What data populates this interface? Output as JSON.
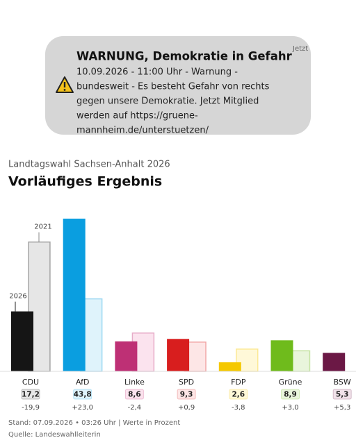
{
  "notification": {
    "title": "WARNUNG, Demokratie in Gefahr",
    "time": "Jetzt",
    "body_lines": [
      "10.09.2026 - 11:00 Uhr - Warnung -",
      "bundesweit - Es besteht Gefahr von rechts",
      "gegen unsere Demokratie. Jetzt Mitglied",
      "werden auf https://gruene-",
      "mannheim.de/unterstuetzen/"
    ]
  },
  "chart_data": {
    "type": "bar",
    "subtitle": "Landtagswahl Sachsen-Anhalt 2026",
    "title": "Vorläufiges Ergebnis",
    "categories": [
      "CDU",
      "AfD",
      "Linke",
      "SPD",
      "FDP",
      "Grüne",
      "BSW"
    ],
    "series": [
      {
        "name": "2026",
        "colors": [
          "#151515",
          "#0a9ee0",
          "#be3075",
          "#d81e1e",
          "#f5c800",
          "#6fbb1c",
          "#6b1845"
        ],
        "values": [
          17.2,
          43.8,
          8.6,
          9.3,
          2.6,
          8.9,
          5.3
        ],
        "value_labels": [
          "17,2",
          "43,8",
          "8,6",
          "9,3",
          "2,6",
          "8,9",
          "5,3"
        ]
      },
      {
        "name": "2021",
        "colors": [
          "#e6e6e6",
          "#dff3fb",
          "#fbe3ee",
          "#fde6e6",
          "#fff8d8",
          "#e9f5dc",
          "#f1e3ea"
        ],
        "values": [
          37.1,
          20.8,
          11.0,
          8.4,
          6.4,
          5.9,
          null
        ]
      }
    ],
    "change": {
      "values": [
        -19.9,
        23.0,
        -2.4,
        0.9,
        -3.8,
        3.0,
        5.3
      ],
      "value_labels": [
        "-19,9",
        "+23,0",
        "-2,4",
        "+0,9",
        "-3,8",
        "+3,0",
        "+5,3"
      ]
    },
    "ylim": [
      0,
      44
    ],
    "footer": [
      "Stand: 07.09.2026 • 03:26 Uhr | Werte in Prozent",
      "Quelle: Landeswahlleiterin"
    ]
  }
}
